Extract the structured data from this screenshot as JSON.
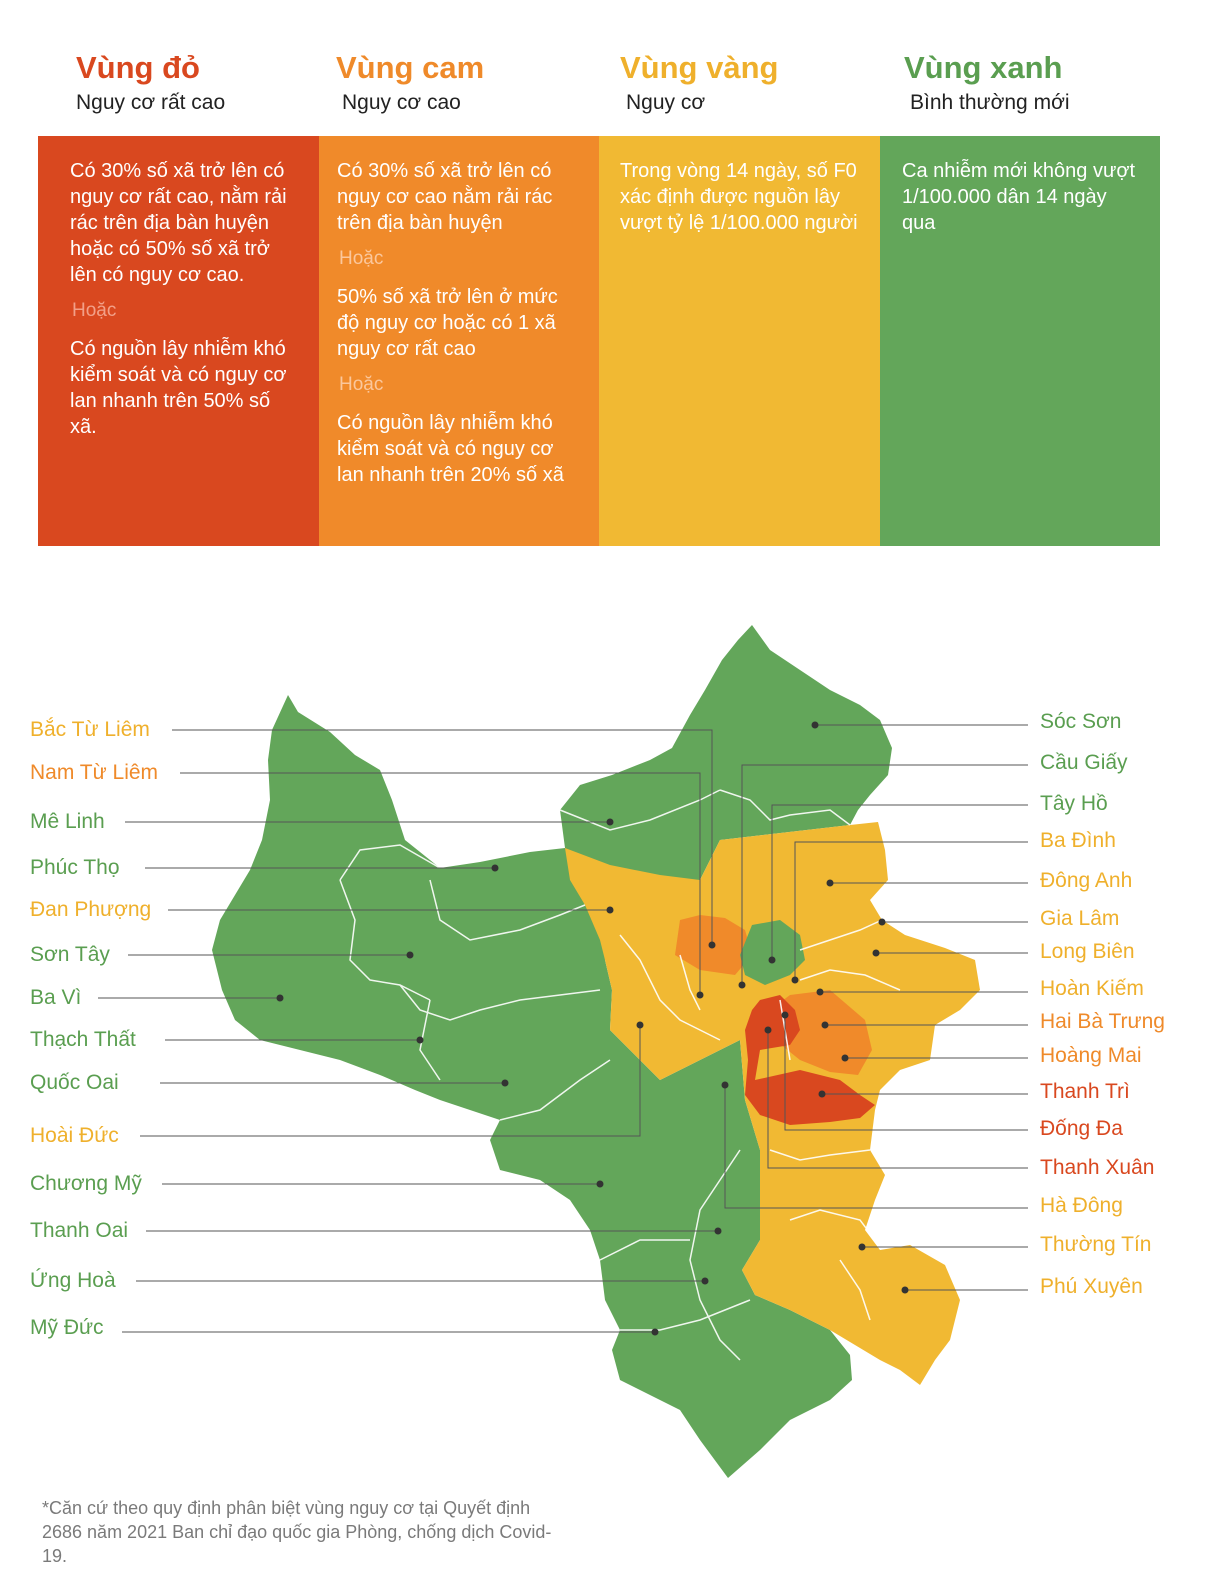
{
  "colors": {
    "red": "#d9481f",
    "orange": "#f08a2a",
    "yellow": "#f1b933",
    "green": "#63a65a",
    "title_red": "#d9481f",
    "title_orange": "#ef8a2a",
    "title_yellow": "#efb02c",
    "title_green": "#5a9e50",
    "or_red": "#f2a088",
    "or_orange": "#fbc79c"
  },
  "zones": [
    {
      "title": "Vùng đỏ",
      "subtitle": "Nguy cơ rất cao",
      "para1": "Có 30% số xã trở lên có nguy cơ rất cao, nằm rải rác trên địa bàn huyện hoặc có 50% số xã trở lên có nguy cơ cao.",
      "or1": "Hoặc",
      "para2": "Có nguồn lây nhiễm khó kiểm soát và có nguy cơ lan nhanh trên 50% số xã."
    },
    {
      "title": "Vùng cam",
      "subtitle": "Nguy cơ cao",
      "para1": "Có 30% số xã trở lên có nguy cơ cao nằm rải rác trên địa bàn huyện",
      "or1": "Hoặc",
      "para2": "50% số xã trở lên ở mức độ nguy cơ hoặc có 1 xã nguy cơ rất cao",
      "or2": "Hoặc",
      "para3": "Có nguồn lây nhiễm khó kiểm soát và có nguy cơ lan nhanh trên 20% số xã"
    },
    {
      "title": "Vùng vàng",
      "subtitle": "Nguy cơ",
      "para1": "Trong vòng 14 ngày, số F0 xác định được nguồn lây vượt tỷ lệ 1/100.000 người"
    },
    {
      "title": "Vùng xanh",
      "subtitle": "Bình thường mới",
      "para1": "Ca nhiễm mới không vượt 1/100.000 dân 14 ngày qua"
    }
  ],
  "districts_left": [
    {
      "name": "Bắc Từ Liêm",
      "zone": "yellow"
    },
    {
      "name": "Nam Từ Liêm",
      "zone": "orange"
    },
    {
      "name": "Mê Linh",
      "zone": "green"
    },
    {
      "name": "Phúc Thọ",
      "zone": "green"
    },
    {
      "name": "Đan Phượng",
      "zone": "yellow"
    },
    {
      "name": "Sơn Tây",
      "zone": "green"
    },
    {
      "name": "Ba Vì",
      "zone": "green"
    },
    {
      "name": "Thạch Thất",
      "zone": "green"
    },
    {
      "name": "Quốc Oai",
      "zone": "green"
    },
    {
      "name": "Hoài Đức",
      "zone": "yellow"
    },
    {
      "name": "Chương Mỹ",
      "zone": "green"
    },
    {
      "name": "Thanh Oai",
      "zone": "green"
    },
    {
      "name": "Ứng Hoà",
      "zone": "green"
    },
    {
      "name": "Mỹ Đức",
      "zone": "green"
    }
  ],
  "districts_right": [
    {
      "name": "Sóc Sơn",
      "zone": "green"
    },
    {
      "name": "Cầu Giấy",
      "zone": "green"
    },
    {
      "name": "Tây Hồ",
      "zone": "green"
    },
    {
      "name": "Ba Đình",
      "zone": "yellow"
    },
    {
      "name": "Đông Anh",
      "zone": "yellow"
    },
    {
      "name": "Gia Lâm",
      "zone": "yellow"
    },
    {
      "name": "Long Biên",
      "zone": "yellow"
    },
    {
      "name": "Hoàn Kiếm",
      "zone": "yellow"
    },
    {
      "name": "Hai Bà Trưng",
      "zone": "orange"
    },
    {
      "name": "Hoàng Mai",
      "zone": "orange"
    },
    {
      "name": "Thanh Trì",
      "zone": "red"
    },
    {
      "name": "Đống Đa",
      "zone": "red"
    },
    {
      "name": "Thanh Xuân",
      "zone": "red"
    },
    {
      "name": "Hà Đông",
      "zone": "yellow"
    },
    {
      "name": "Thường Tín",
      "zone": "yellow"
    },
    {
      "name": "Phú Xuyên",
      "zone": "yellow"
    }
  ],
  "footnote": "*Căn cứ theo quy định phân biệt vùng nguy cơ tại Quyết định 2686 năm 2021 Ban chỉ đạo quốc gia Phòng, chống dịch Covid-19."
}
